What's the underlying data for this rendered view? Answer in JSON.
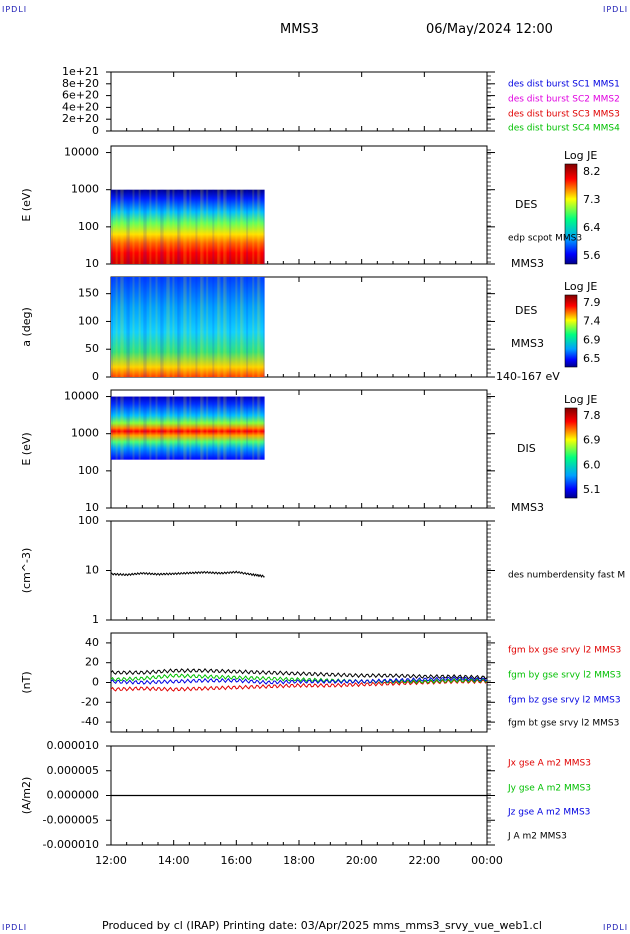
{
  "corner_tl": "IPDLI",
  "corner_tr": "IPDLI",
  "corner_bl": "IPDLI",
  "corner_br": "IPDLI",
  "header": {
    "spacecraft": "MMS3",
    "datetime": "06/May/2024 12:00"
  },
  "footer": "Produced by cl (IRAP)   Printing date: 03/Apr/2025   mms_mms3_srvy_vue_web1.cl",
  "colors": {
    "black": "#000000",
    "red": "#e00000",
    "green": "#00c000",
    "blue": "#0000e0",
    "magenta": "#e000e0"
  },
  "chart_data": [
    {
      "type": "line",
      "id": "panel1",
      "ytick_labels": [
        "0",
        "2e+20",
        "4e+20",
        "6e+20",
        "8e+20",
        "1e+21"
      ],
      "ylim": [
        0,
        1e+21
      ],
      "legend": [
        {
          "text": "des dist burst SC1 MMS1",
          "color": "#0000e0"
        },
        {
          "text": "des dist burst SC2 MMS2",
          "color": "#e000e0"
        },
        {
          "text": "des dist burst SC3 MMS3",
          "color": "#e00000"
        },
        {
          "text": "des dist burst SC4 MMS4",
          "color": "#00c000"
        }
      ],
      "series": [
        {
          "x": [
            0,
            12
          ],
          "values": [
            0,
            0
          ]
        }
      ]
    },
    {
      "type": "heatmap",
      "id": "panel2",
      "ylabel": "E (eV)",
      "yscale": "log",
      "ytick_labels": [
        "10",
        "100",
        "1000",
        "10000"
      ],
      "ylim": [
        10,
        15000
      ],
      "coverage_x": [
        0,
        4.9
      ],
      "coverage_y": [
        10,
        1000
      ],
      "colorbar": {
        "title": "Log JE",
        "ticks": [
          "8.2",
          "7.3",
          "6.4",
          "5.6"
        ]
      },
      "labels": [
        "DES",
        "edp scpot MMS3",
        "MMS3"
      ]
    },
    {
      "type": "heatmap",
      "id": "panel3",
      "ylabel": "a (deg)",
      "ytick_labels": [
        "0",
        "50",
        "100",
        "150"
      ],
      "ylim": [
        0,
        180
      ],
      "coverage_x": [
        0,
        4.9
      ],
      "coverage_y": [
        0,
        180
      ],
      "colorbar": {
        "title": "Log JE",
        "ticks": [
          "7.9",
          "7.4",
          "6.9",
          "6.5"
        ]
      },
      "labels": [
        "DES",
        "MMS3",
        "140-167 eV"
      ]
    },
    {
      "type": "heatmap",
      "id": "panel4",
      "ylabel": "E (eV)",
      "yscale": "log",
      "ytick_labels": [
        "10",
        "100",
        "1000",
        "10000"
      ],
      "ylim": [
        10,
        15000
      ],
      "coverage_x": [
        0,
        4.9
      ],
      "coverage_y": [
        200,
        10000
      ],
      "colorbar": {
        "title": "Log JE",
        "ticks": [
          "7.8",
          "6.9",
          "6.0",
          "5.1"
        ]
      },
      "labels": [
        "DIS",
        "MMS3"
      ]
    },
    {
      "type": "line",
      "id": "panel5",
      "ylabel": "(cm^-3)",
      "yscale": "log",
      "ytick_labels": [
        "1",
        "10",
        "100"
      ],
      "ylim": [
        1,
        100
      ],
      "legend": [
        {
          "text": "des numberdensity fast M",
          "color": "#000000"
        }
      ],
      "series": [
        {
          "name": "des numberdensity fast M",
          "color": "#000000",
          "x": [
            0,
            0.5,
            1,
            1.5,
            2,
            2.5,
            3,
            3.5,
            4,
            4.5,
            4.9
          ],
          "values": [
            8.5,
            8.2,
            8.8,
            8.4,
            8.6,
            8.9,
            9.2,
            8.8,
            9.3,
            8.3,
            7.6
          ]
        }
      ]
    },
    {
      "type": "line",
      "id": "panel6",
      "ylabel": "(nT)",
      "ytick_labels": [
        "-40",
        "-20",
        "0",
        "20",
        "40"
      ],
      "ylim": [
        -50,
        50
      ],
      "legend": [
        {
          "text": "fgm bx gse srvy l2 MMS3",
          "color": "#e00000"
        },
        {
          "text": "fgm by gse srvy l2 MMS3",
          "color": "#00c000"
        },
        {
          "text": "fgm bz gse srvy l2 MMS3",
          "color": "#0000e0"
        },
        {
          "text": "fgm bt gse srvy l2 MMS3",
          "color": "#000000"
        }
      ],
      "series": [
        {
          "name": "fgm bx gse srvy l2 MMS3",
          "color": "#e00000",
          "x": [
            0,
            1,
            2,
            3,
            4,
            5,
            6,
            7,
            8,
            9,
            10,
            11,
            12
          ],
          "values": [
            -7,
            -6,
            -7,
            -6,
            -5,
            -4,
            -3,
            -3,
            -2,
            -1,
            0,
            1,
            1
          ]
        },
        {
          "name": "fgm by gse srvy l2 MMS3",
          "color": "#00c000",
          "x": [
            0,
            1,
            2,
            3,
            4,
            5,
            6,
            7,
            8,
            9,
            10,
            11,
            12
          ],
          "values": [
            3,
            4,
            7,
            6,
            5,
            4,
            3,
            2,
            1,
            1,
            1,
            2,
            2
          ]
        },
        {
          "name": "fgm bz gse srvy l2 MMS3",
          "color": "#0000e0",
          "x": [
            0,
            1,
            2,
            3,
            4,
            5,
            6,
            7,
            8,
            9,
            10,
            11,
            12
          ],
          "values": [
            1,
            0,
            1,
            2,
            2,
            0,
            1,
            1,
            1,
            2,
            3,
            4,
            3
          ]
        },
        {
          "name": "fgm bt gse srvy l2 MMS3",
          "color": "#000000",
          "x": [
            0,
            1,
            2,
            3,
            4,
            5,
            6,
            7,
            8,
            9,
            10,
            11,
            12
          ],
          "values": [
            10,
            10,
            12,
            12,
            11,
            10,
            9,
            8,
            7,
            7,
            6,
            6,
            5
          ]
        }
      ]
    },
    {
      "type": "line",
      "id": "panel7",
      "ylabel": "(A/m2)",
      "ytick_labels": [
        "-0.000010",
        "-0.000005",
        "0.000000",
        "0.000005",
        "0.000010"
      ],
      "ylim": [
        -1e-05,
        1e-05
      ],
      "legend": [
        {
          "text": "Jx gse A m2 MMS3",
          "color": "#e00000"
        },
        {
          "text": "Jy gse A m2 MMS3",
          "color": "#00c000"
        },
        {
          "text": "Jz gse A m2 MMS3",
          "color": "#0000e0"
        },
        {
          "text": "J A m2 MMS3",
          "color": "#000000"
        }
      ],
      "series": [
        {
          "name": "J A m2 MMS3",
          "color": "#000000",
          "x": [
            0,
            12
          ],
          "values": [
            0,
            0
          ]
        }
      ]
    }
  ],
  "xaxis": {
    "tick_labels": [
      "12:00",
      "14:00",
      "16:00",
      "18:00",
      "20:00",
      "22:00",
      "00:00"
    ],
    "xlim": [
      0,
      12
    ]
  }
}
